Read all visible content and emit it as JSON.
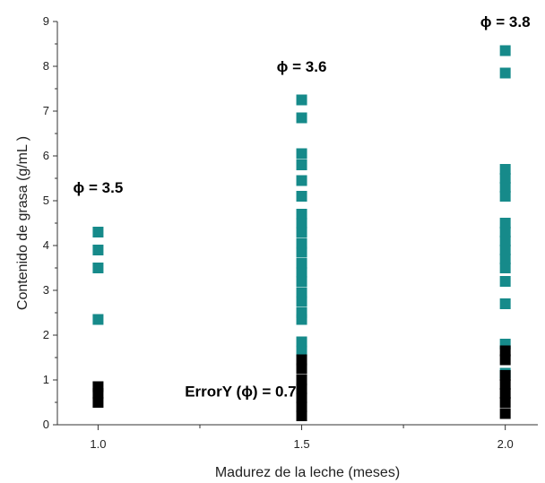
{
  "chart_data": {
    "type": "scatter",
    "xlabel": "Madurez de la leche (meses)",
    "ylabel": "Contenido de grasa (g/mL )",
    "x_ticks": [
      "1.0",
      "1.5",
      "2.0"
    ],
    "y_ticks": [
      "0",
      "1",
      "2",
      "3",
      "4",
      "5",
      "6",
      "7",
      "8",
      "9"
    ],
    "xlim": [
      0.9,
      2.08
    ],
    "ylim": [
      0,
      9
    ],
    "grid": false,
    "colors": {
      "fat": "#168a8a",
      "error": "#000000"
    },
    "series": [
      {
        "color_key": "fat",
        "points": [
          {
            "x": 1.0,
            "y": 4.3
          },
          {
            "x": 1.0,
            "y": 3.9
          },
          {
            "x": 1.0,
            "y": 3.5
          },
          {
            "x": 1.0,
            "y": 2.35
          },
          {
            "x": 1.5,
            "y": 7.25
          },
          {
            "x": 1.5,
            "y": 6.85
          },
          {
            "x": 1.5,
            "y": 6.05
          },
          {
            "x": 1.5,
            "y": 5.8
          },
          {
            "x": 1.5,
            "y": 5.45
          },
          {
            "x": 1.5,
            "y": 5.1
          },
          {
            "x": 1.5,
            "y": 4.7
          },
          {
            "x": 1.5,
            "y": 4.5
          },
          {
            "x": 1.5,
            "y": 4.3
          },
          {
            "x": 1.5,
            "y": 4.05
          },
          {
            "x": 1.5,
            "y": 3.85
          },
          {
            "x": 1.5,
            "y": 3.6
          },
          {
            "x": 1.5,
            "y": 3.4
          },
          {
            "x": 1.5,
            "y": 3.2
          },
          {
            "x": 1.5,
            "y": 2.95
          },
          {
            "x": 1.5,
            "y": 2.75
          },
          {
            "x": 1.5,
            "y": 2.5
          },
          {
            "x": 1.5,
            "y": 2.35
          },
          {
            "x": 1.5,
            "y": 1.85
          },
          {
            "x": 1.5,
            "y": 1.65
          },
          {
            "x": 2.0,
            "y": 8.35
          },
          {
            "x": 2.0,
            "y": 7.85
          },
          {
            "x": 2.0,
            "y": 5.7
          },
          {
            "x": 2.0,
            "y": 5.5
          },
          {
            "x": 2.0,
            "y": 5.3
          },
          {
            "x": 2.0,
            "y": 5.1
          },
          {
            "x": 2.0,
            "y": 4.5
          },
          {
            "x": 2.0,
            "y": 4.3
          },
          {
            "x": 2.0,
            "y": 4.1
          },
          {
            "x": 2.0,
            "y": 3.9
          },
          {
            "x": 2.0,
            "y": 3.7
          },
          {
            "x": 2.0,
            "y": 3.5
          },
          {
            "x": 2.0,
            "y": 3.2
          },
          {
            "x": 2.0,
            "y": 2.7
          },
          {
            "x": 2.0,
            "y": 1.8
          },
          {
            "x": 2.0,
            "y": 1.15
          }
        ]
      },
      {
        "color_key": "error",
        "points": [
          {
            "x": 1.0,
            "y": 0.85
          },
          {
            "x": 1.0,
            "y": 0.7
          },
          {
            "x": 1.0,
            "y": 0.5
          },
          {
            "x": 1.5,
            "y": 1.45
          },
          {
            "x": 1.5,
            "y": 1.25
          },
          {
            "x": 1.5,
            "y": 1.0
          },
          {
            "x": 1.5,
            "y": 0.8
          },
          {
            "x": 1.5,
            "y": 0.6
          },
          {
            "x": 1.5,
            "y": 0.4
          },
          {
            "x": 1.5,
            "y": 0.2
          },
          {
            "x": 2.0,
            "y": 1.65
          },
          {
            "x": 2.0,
            "y": 1.45
          },
          {
            "x": 2.0,
            "y": 1.1
          },
          {
            "x": 2.0,
            "y": 0.9
          },
          {
            "x": 2.0,
            "y": 0.7
          },
          {
            "x": 2.0,
            "y": 0.5
          },
          {
            "x": 2.0,
            "y": 0.25
          }
        ]
      }
    ],
    "annotations": [
      {
        "text": "ϕ = 3.5",
        "x": 1.0,
        "y": 5.3
      },
      {
        "text": "ϕ = 3.6",
        "x": 1.5,
        "y": 8.0
      },
      {
        "text": "ϕ = 3.8",
        "x": 2.0,
        "y": 9.0
      },
      {
        "text": "ErrorY (ϕ) = 0.7",
        "x": 1.35,
        "y": 0.75
      }
    ]
  }
}
